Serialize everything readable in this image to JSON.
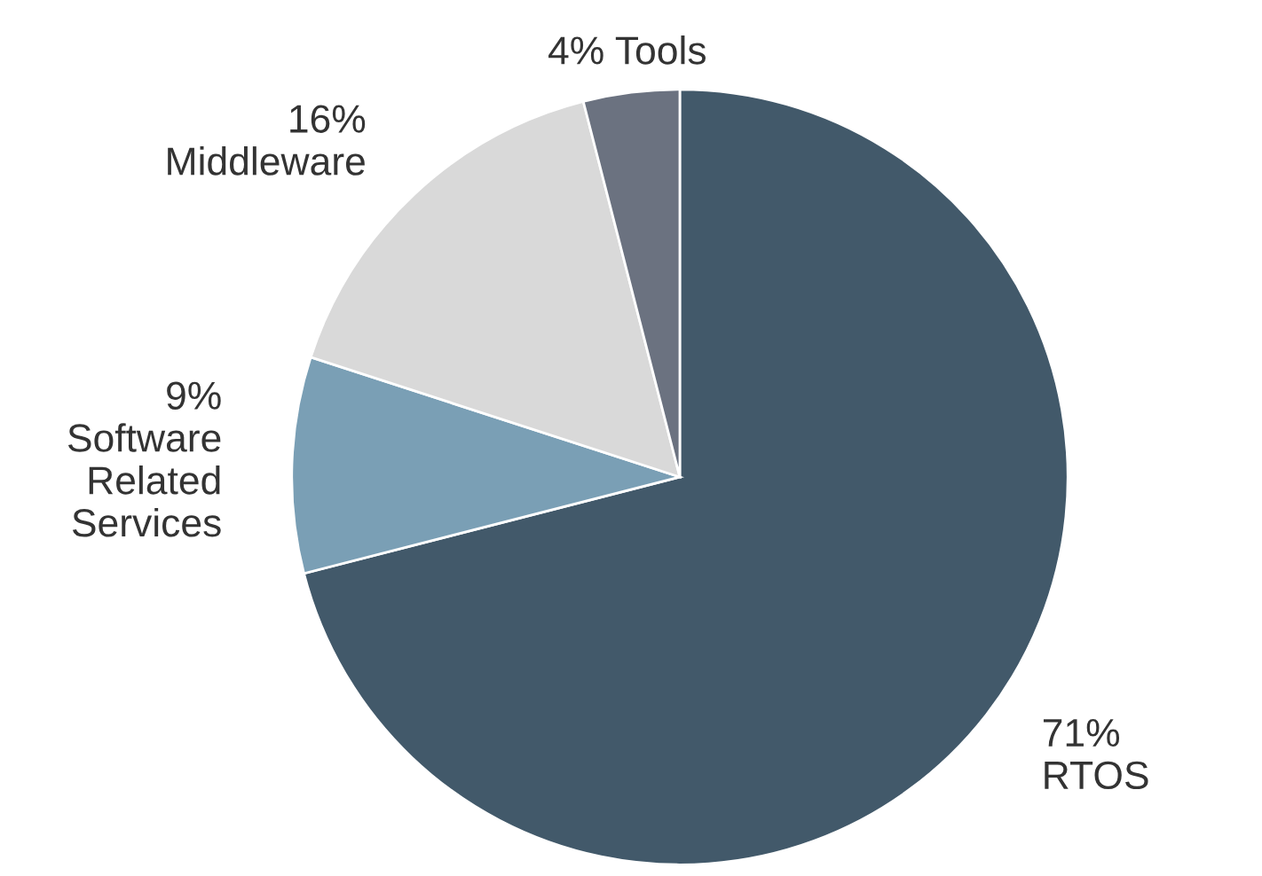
{
  "chart_data": {
    "type": "pie",
    "categories": [
      "RTOS",
      "Software\nRelated\nServices",
      "Middleware",
      "Tools"
    ],
    "values": [
      71,
      9,
      16,
      4
    ],
    "colors": [
      "#42596a",
      "#7a9fb5",
      "#d9d9d9",
      "#6b7280"
    ],
    "value_labels": [
      "71%",
      "9%",
      "16%",
      "4%"
    ]
  }
}
